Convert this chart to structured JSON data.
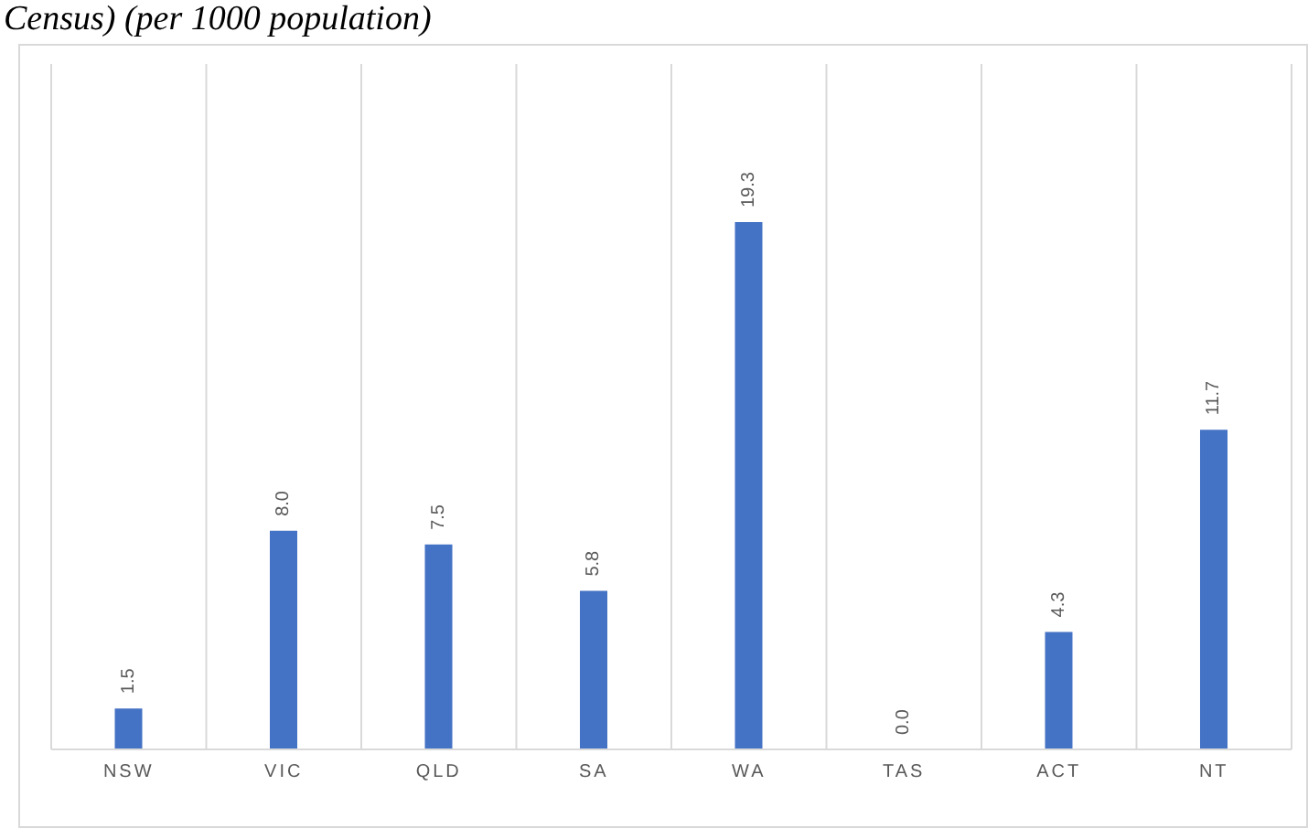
{
  "chart_data": {
    "type": "bar",
    "title": "Census) (per 1000 population)",
    "categories": [
      "NSW",
      "VIC",
      "QLD",
      "SA",
      "WA",
      "TAS",
      "ACT",
      "NT"
    ],
    "values": [
      1.5,
      8.0,
      7.5,
      5.8,
      19.3,
      0.0,
      4.3,
      11.7
    ],
    "value_labels": [
      "1.5",
      "8.0",
      "7.5",
      "5.8",
      "19.3",
      "0.0",
      "4.3",
      "11.7"
    ],
    "color": "#4472c4",
    "grid": "x"
  }
}
